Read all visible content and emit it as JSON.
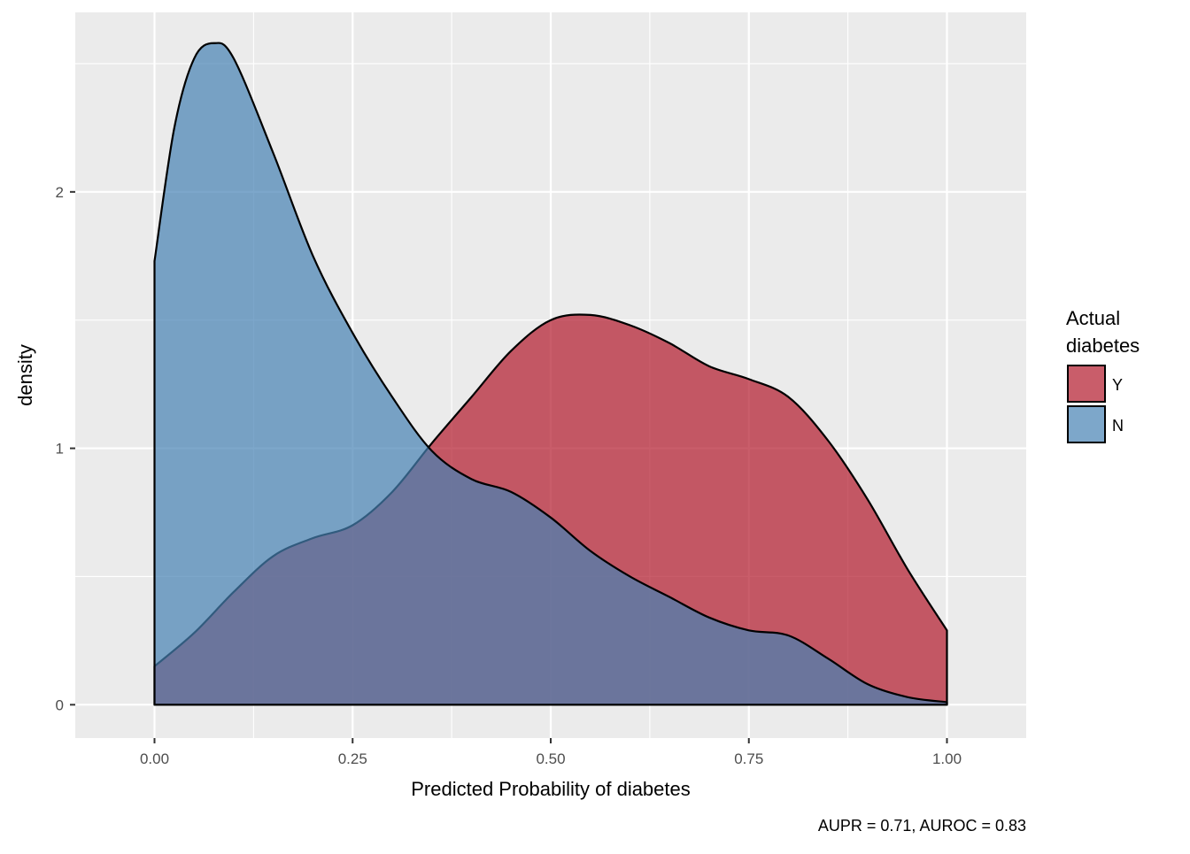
{
  "chart_data": {
    "type": "area",
    "xlabel": "Predicted Probability of diabetes",
    "ylabel": "density",
    "caption": "AUPR = 0.71, AUROC = 0.83",
    "xlim": [
      -0.1,
      1.1
    ],
    "ylim": [
      -0.13,
      2.7
    ],
    "x_ticks": [
      0,
      0.25,
      0.5,
      0.75,
      1.0
    ],
    "x_tick_labels": [
      "0.00",
      "0.25",
      "0.50",
      "0.75",
      "1.00"
    ],
    "y_ticks": [
      0,
      1,
      2
    ],
    "y_tick_labels": [
      "0",
      "1",
      "2"
    ],
    "grid": true,
    "legend": {
      "title": "Actual diabetes",
      "title_lines": [
        "Actual",
        "diabetes"
      ],
      "placement": "right",
      "entries": [
        "Y",
        "N"
      ]
    },
    "series": [
      {
        "name": "Y",
        "color": "#b2182b",
        "x": [
          0.0,
          0.05,
          0.1,
          0.15,
          0.2,
          0.25,
          0.3,
          0.35,
          0.4,
          0.45,
          0.5,
          0.55,
          0.6,
          0.65,
          0.7,
          0.75,
          0.8,
          0.85,
          0.9,
          0.95,
          1.0
        ],
        "y": [
          0.15,
          0.28,
          0.44,
          0.58,
          0.65,
          0.7,
          0.83,
          1.02,
          1.2,
          1.38,
          1.5,
          1.52,
          1.48,
          1.41,
          1.32,
          1.27,
          1.2,
          1.03,
          0.8,
          0.53,
          0.29
        ]
      },
      {
        "name": "N",
        "color": "#4682b4",
        "x": [
          0.0,
          0.025,
          0.05,
          0.075,
          0.1,
          0.15,
          0.2,
          0.25,
          0.3,
          0.35,
          0.4,
          0.45,
          0.5,
          0.55,
          0.6,
          0.65,
          0.7,
          0.75,
          0.8,
          0.85,
          0.9,
          0.95,
          1.0
        ],
        "y": [
          1.73,
          2.25,
          2.52,
          2.58,
          2.52,
          2.15,
          1.75,
          1.45,
          1.2,
          0.99,
          0.88,
          0.83,
          0.73,
          0.6,
          0.5,
          0.42,
          0.34,
          0.29,
          0.27,
          0.18,
          0.08,
          0.03,
          0.01
        ]
      }
    ]
  }
}
